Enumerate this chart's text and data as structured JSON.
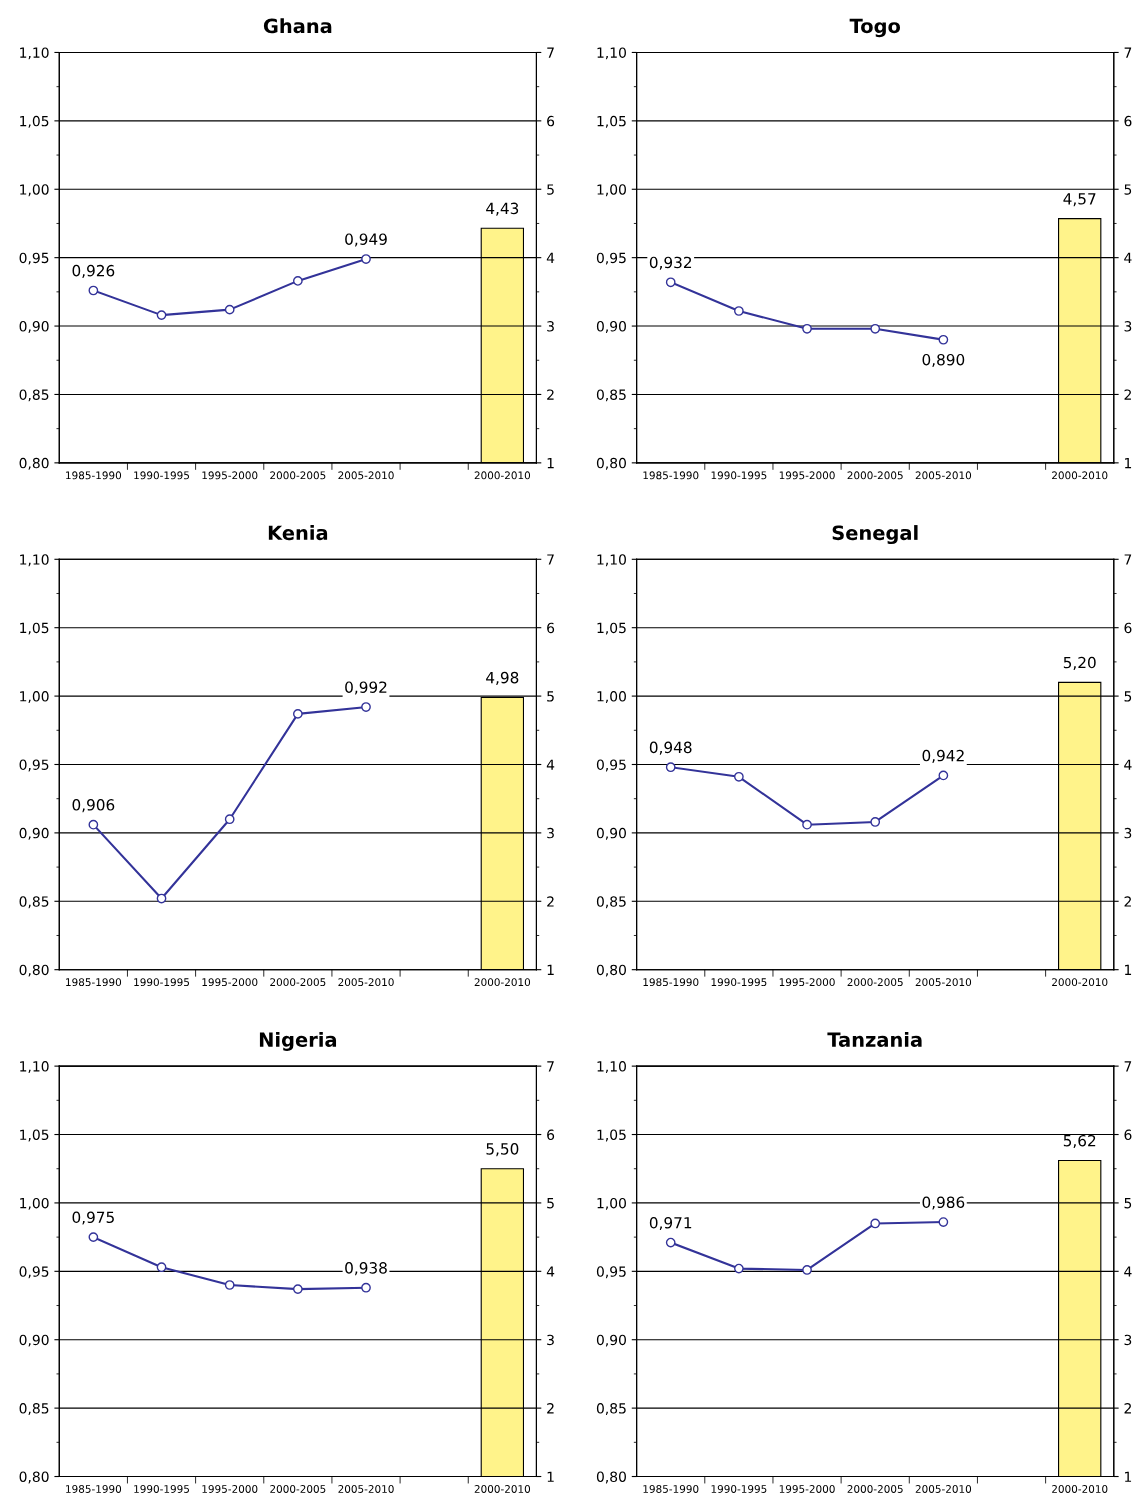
{
  "chart_data": [
    {
      "type": "line",
      "title": "Ghana",
      "categories": [
        "1985-1990",
        "1990-1995",
        "1995-2000",
        "2000-2005",
        "2005-2010",
        null,
        "2000-2010"
      ],
      "ylim": [
        0.8,
        1.1
      ],
      "yticks": [
        {
          "value": 0.8,
          "label": "0,80"
        },
        {
          "value": 0.85,
          "label": "0,85"
        },
        {
          "value": 0.9,
          "label": "0,90"
        },
        {
          "value": 0.95,
          "label": "0,95"
        },
        {
          "value": 1.0,
          "label": "1,00"
        },
        {
          "value": 1.05,
          "label": "1,05"
        },
        {
          "value": 1.1,
          "label": "1,10"
        }
      ],
      "y2lim": [
        1,
        7
      ],
      "y2ticks": [
        1,
        2,
        3,
        4,
        5,
        6,
        7
      ],
      "grid": "y",
      "legend": false,
      "marker": "circle",
      "series": [
        {
          "color": "#333399",
          "values": [
            0.926,
            0.908,
            0.912,
            0.933,
            0.949,
            null,
            null
          ],
          "value_labels": [
            "0,926",
            null,
            null,
            null,
            "0,949",
            null,
            null
          ]
        },
        {
          "type": "bar",
          "axis": "y2",
          "color": "#fff38a",
          "values": [
            null,
            null,
            null,
            null,
            null,
            null,
            4.43
          ],
          "value_labels": [
            null,
            null,
            null,
            null,
            null,
            null,
            "4,43"
          ]
        }
      ]
    },
    {
      "type": "line",
      "title": "Togo",
      "categories": [
        "1985-1990",
        "1990-1995",
        "1995-2000",
        "2000-2005",
        "2005-2010",
        null,
        "2000-2010"
      ],
      "ylim": [
        0.8,
        1.1
      ],
      "yticks": [
        {
          "value": 0.8,
          "label": "0,80"
        },
        {
          "value": 0.85,
          "label": "0,85"
        },
        {
          "value": 0.9,
          "label": "0,90"
        },
        {
          "value": 0.95,
          "label": "0,95"
        },
        {
          "value": 1.0,
          "label": "1,00"
        },
        {
          "value": 1.05,
          "label": "1,05"
        },
        {
          "value": 1.1,
          "label": "1,10"
        }
      ],
      "y2lim": [
        1,
        7
      ],
      "y2ticks": [
        1,
        2,
        3,
        4,
        5,
        6,
        7
      ],
      "grid": "y",
      "legend": false,
      "marker": "circle",
      "series": [
        {
          "color": "#333399",
          "values": [
            0.932,
            0.911,
            0.898,
            0.898,
            0.89,
            null,
            null
          ],
          "value_labels": [
            "0,932",
            null,
            null,
            null,
            "0,890",
            null,
            null
          ]
        },
        {
          "type": "bar",
          "axis": "y2",
          "color": "#fff38a",
          "values": [
            null,
            null,
            null,
            null,
            null,
            null,
            4.57
          ],
          "value_labels": [
            null,
            null,
            null,
            null,
            null,
            null,
            "4,57"
          ]
        }
      ]
    },
    {
      "type": "line",
      "title": "Kenia",
      "categories": [
        "1985-1990",
        "1990-1995",
        "1995-2000",
        "2000-2005",
        "2005-2010",
        null,
        "2000-2010"
      ],
      "ylim": [
        0.8,
        1.1
      ],
      "yticks": [
        {
          "value": 0.8,
          "label": "0,80"
        },
        {
          "value": 0.85,
          "label": "0,85"
        },
        {
          "value": 0.9,
          "label": "0,90"
        },
        {
          "value": 0.95,
          "label": "0,95"
        },
        {
          "value": 1.0,
          "label": "1,00"
        },
        {
          "value": 1.05,
          "label": "1,05"
        },
        {
          "value": 1.1,
          "label": "1,10"
        }
      ],
      "y2lim": [
        1,
        7
      ],
      "y2ticks": [
        1,
        2,
        3,
        4,
        5,
        6,
        7
      ],
      "grid": "y",
      "legend": false,
      "marker": "circle",
      "series": [
        {
          "color": "#333399",
          "values": [
            0.906,
            0.852,
            0.91,
            0.987,
            0.992,
            null,
            null
          ],
          "value_labels": [
            "0,906",
            null,
            null,
            null,
            "0,992",
            null,
            null
          ]
        },
        {
          "type": "bar",
          "axis": "y2",
          "color": "#fff38a",
          "values": [
            null,
            null,
            null,
            null,
            null,
            null,
            4.98
          ],
          "value_labels": [
            null,
            null,
            null,
            null,
            null,
            null,
            "4,98"
          ]
        }
      ]
    },
    {
      "type": "line",
      "title": "Senegal",
      "categories": [
        "1985-1990",
        "1990-1995",
        "1995-2000",
        "2000-2005",
        "2005-2010",
        null,
        "2000-2010"
      ],
      "ylim": [
        0.8,
        1.1
      ],
      "yticks": [
        {
          "value": 0.8,
          "label": "0,80"
        },
        {
          "value": 0.85,
          "label": "0,85"
        },
        {
          "value": 0.9,
          "label": "0,90"
        },
        {
          "value": 0.95,
          "label": "0,95"
        },
        {
          "value": 1.0,
          "label": "1,00"
        },
        {
          "value": 1.05,
          "label": "1,05"
        },
        {
          "value": 1.1,
          "label": "1,10"
        }
      ],
      "y2lim": [
        1,
        7
      ],
      "y2ticks": [
        1,
        2,
        3,
        4,
        5,
        6,
        7
      ],
      "grid": "y",
      "legend": false,
      "marker": "circle",
      "series": [
        {
          "color": "#333399",
          "values": [
            0.948,
            0.941,
            0.906,
            0.908,
            0.942,
            null,
            null
          ],
          "value_labels": [
            "0,948",
            null,
            null,
            null,
            "0,942",
            null,
            null
          ]
        },
        {
          "type": "bar",
          "axis": "y2",
          "color": "#fff38a",
          "values": [
            null,
            null,
            null,
            null,
            null,
            null,
            5.2
          ],
          "value_labels": [
            null,
            null,
            null,
            null,
            null,
            null,
            "5,20"
          ]
        }
      ]
    },
    {
      "type": "line",
      "title": "Nigeria",
      "categories": [
        "1985-1990",
        "1990-1995",
        "1995-2000",
        "2000-2005",
        "2005-2010",
        null,
        "2000-2010"
      ],
      "ylim": [
        0.8,
        1.1
      ],
      "yticks": [
        {
          "value": 0.8,
          "label": "0,80"
        },
        {
          "value": 0.85,
          "label": "0,85"
        },
        {
          "value": 0.9,
          "label": "0,90"
        },
        {
          "value": 0.95,
          "label": "0,95"
        },
        {
          "value": 1.0,
          "label": "1,00"
        },
        {
          "value": 1.05,
          "label": "1,05"
        },
        {
          "value": 1.1,
          "label": "1,10"
        }
      ],
      "y2lim": [
        1,
        7
      ],
      "y2ticks": [
        1,
        2,
        3,
        4,
        5,
        6,
        7
      ],
      "grid": "y",
      "legend": false,
      "marker": "circle",
      "series": [
        {
          "color": "#333399",
          "values": [
            0.975,
            0.953,
            0.94,
            0.937,
            0.938,
            null,
            null
          ],
          "value_labels": [
            "0,975",
            null,
            null,
            null,
            "0,938",
            null,
            null
          ]
        },
        {
          "type": "bar",
          "axis": "y2",
          "color": "#fff38a",
          "values": [
            null,
            null,
            null,
            null,
            null,
            null,
            5.5
          ],
          "value_labels": [
            null,
            null,
            null,
            null,
            null,
            null,
            "5,50"
          ]
        }
      ]
    },
    {
      "type": "line",
      "title": "Tanzania",
      "categories": [
        "1985-1990",
        "1990-1995",
        "1995-2000",
        "2000-2005",
        "2005-2010",
        null,
        "2000-2010"
      ],
      "ylim": [
        0.8,
        1.1
      ],
      "yticks": [
        {
          "value": 0.8,
          "label": "0,80"
        },
        {
          "value": 0.85,
          "label": "0,85"
        },
        {
          "value": 0.9,
          "label": "0,90"
        },
        {
          "value": 0.95,
          "label": "0,95"
        },
        {
          "value": 1.0,
          "label": "1,00"
        },
        {
          "value": 1.05,
          "label": "1,05"
        },
        {
          "value": 1.1,
          "label": "1,10"
        }
      ],
      "y2lim": [
        1,
        7
      ],
      "y2ticks": [
        1,
        2,
        3,
        4,
        5,
        6,
        7
      ],
      "grid": "y",
      "legend": false,
      "marker": "circle",
      "series": [
        {
          "color": "#333399",
          "values": [
            0.971,
            0.952,
            0.951,
            0.985,
            0.986,
            null,
            null
          ],
          "value_labels": [
            "0,971",
            null,
            null,
            null,
            "0,986",
            null,
            null
          ]
        },
        {
          "type": "bar",
          "axis": "y2",
          "color": "#fff38a",
          "values": [
            null,
            null,
            null,
            null,
            null,
            null,
            5.62
          ],
          "value_labels": [
            null,
            null,
            null,
            null,
            null,
            null,
            "5,62"
          ]
        }
      ]
    }
  ]
}
